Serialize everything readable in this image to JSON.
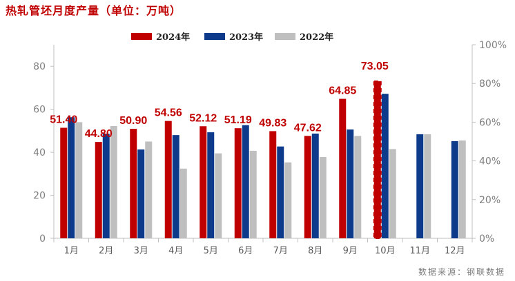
{
  "title": "热轧管坯月度产量（单位：万吨）",
  "source": "数据来源：钢联数据",
  "colors": {
    "2024年": "#C00000",
    "2023年": "#0D3A8B",
    "2022年": "#BFBFBF",
    "labels": "#C00000"
  },
  "chart_data": {
    "type": "bar",
    "categories": [
      "1月",
      "2月",
      "3月",
      "4月",
      "5月",
      "6月",
      "7月",
      "8月",
      "9月",
      "10月",
      "11月",
      "12月"
    ],
    "series": [
      {
        "name": "2024年",
        "values": [
          51.4,
          44.8,
          50.9,
          54.56,
          52.12,
          51.19,
          49.83,
          47.62,
          64.85,
          73.05,
          null,
          null
        ]
      },
      {
        "name": "2023年",
        "values": [
          56.3,
          48.6,
          41.3,
          48.0,
          49.3,
          52.6,
          42.7,
          48.7,
          50.6,
          67.2,
          48.4,
          45.2
        ]
      },
      {
        "name": "2022年",
        "values": [
          54.0,
          52.2,
          45.0,
          32.4,
          39.5,
          40.7,
          35.3,
          37.8,
          47.6,
          41.5,
          48.4,
          45.5
        ]
      }
    ],
    "data_labels": [
      "51.40",
      "44.80",
      "50.90",
      "54.56",
      "52.12",
      "51.19",
      "49.83",
      "47.62",
      "64.85",
      "73.05"
    ],
    "y_ticks": [
      "0",
      "20",
      "40",
      "60",
      "80"
    ],
    "y_right_ticks": [
      "0%",
      "20%",
      "40%",
      "60%",
      "80%",
      "100%"
    ],
    "ylim": [
      0,
      90
    ],
    "y_right_lim": [
      0,
      1
    ],
    "forecast_month_index": 9,
    "legend_position": "top-center",
    "grid": false
  }
}
